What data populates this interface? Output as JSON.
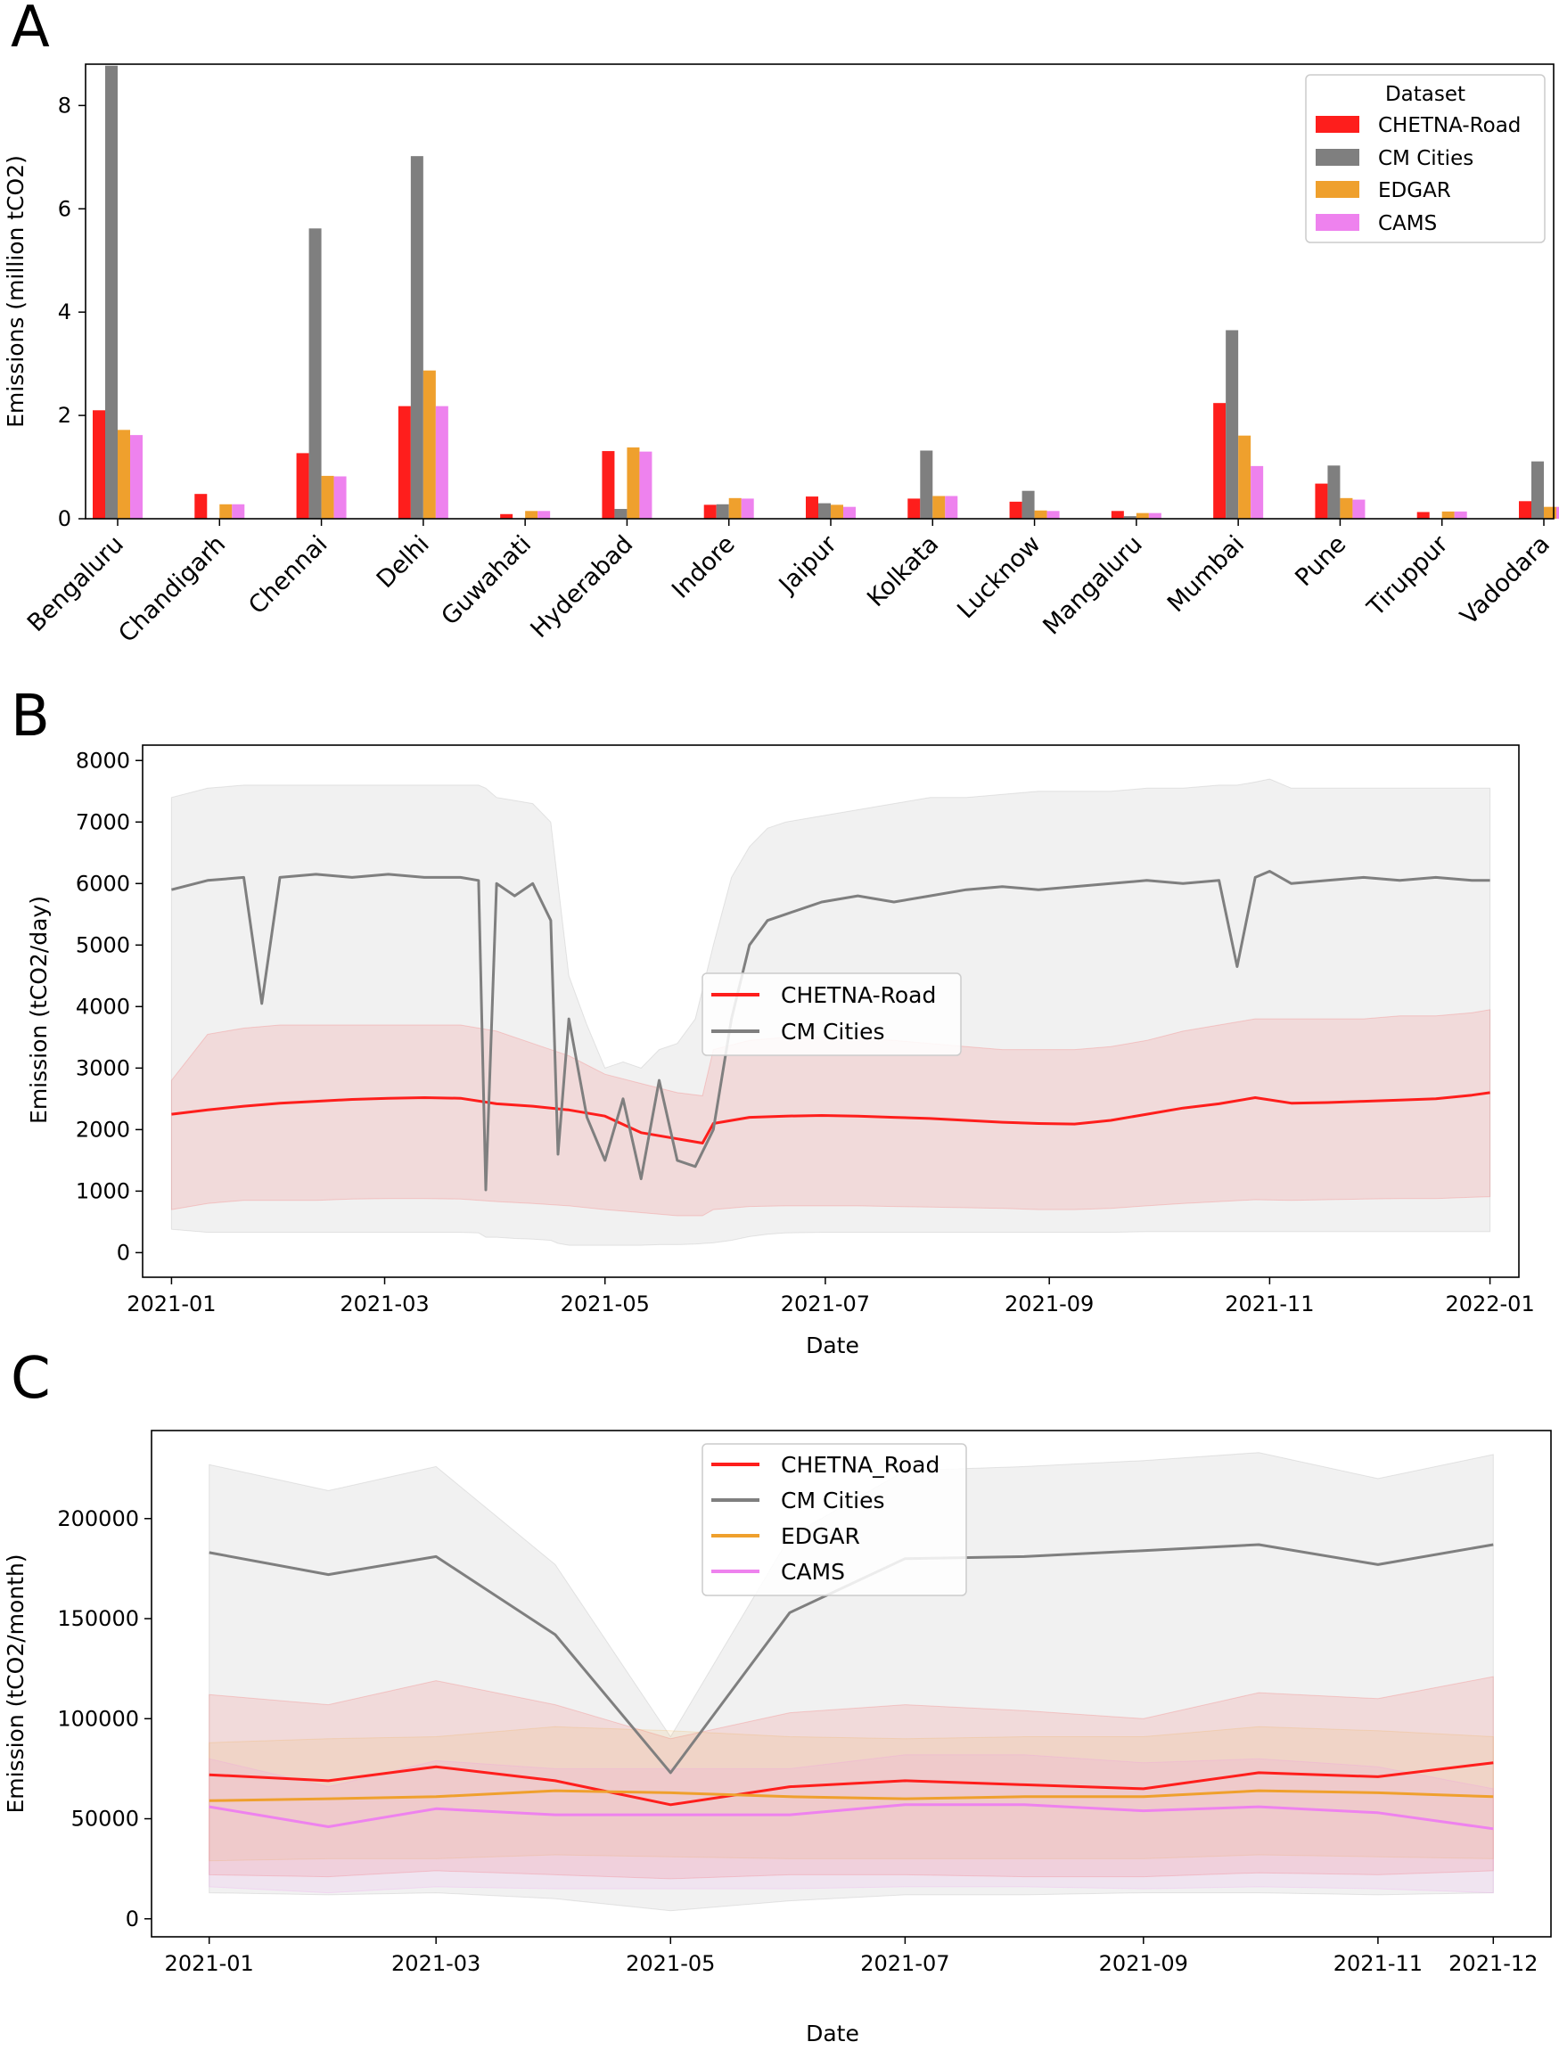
{
  "colors": {
    "chetna": "#fe1e1c",
    "cm": "#7f7f7f",
    "edgar": "#efa02d",
    "cams": "#ee82ee"
  },
  "chart_data": [
    {
      "panel": "A",
      "type": "bar",
      "title": "",
      "xlabel": "",
      "ylabel": "Emissions (million tCO2)",
      "ylim": [
        0,
        8.8
      ],
      "yticks": [
        0,
        2,
        4,
        6,
        8
      ],
      "legend": {
        "title": "Dataset",
        "placement": "top-right"
      },
      "categories": [
        "Bengaluru",
        "Chandigarh",
        "Chennai",
        "Delhi",
        "Guwahati",
        "Hyderabad",
        "Indore",
        "Jaipur",
        "Kolkata",
        "Lucknow",
        "Mangaluru",
        "Mumbai",
        "Pune",
        "Tiruppur",
        "Vadodara"
      ],
      "series": [
        {
          "name": "CHETNA-Road",
          "values": [
            2.1,
            0.48,
            1.27,
            2.18,
            0.09,
            1.31,
            0.27,
            0.43,
            0.39,
            0.33,
            0.15,
            2.24,
            0.68,
            0.13,
            0.34
          ]
        },
        {
          "name": "CM Cities",
          "values": [
            8.77,
            0.0,
            5.62,
            7.02,
            0.0,
            0.19,
            0.28,
            0.3,
            1.32,
            0.54,
            0.05,
            3.65,
            1.03,
            0.0,
            1.11
          ]
        },
        {
          "name": "EDGAR",
          "values": [
            1.72,
            0.28,
            0.83,
            2.87,
            0.15,
            1.38,
            0.4,
            0.27,
            0.44,
            0.16,
            0.11,
            1.61,
            0.4,
            0.14,
            0.23
          ]
        },
        {
          "name": "CAMS",
          "values": [
            1.62,
            0.28,
            0.82,
            2.18,
            0.15,
            1.3,
            0.39,
            0.23,
            0.44,
            0.15,
            0.11,
            1.02,
            0.37,
            0.14,
            0.23
          ]
        }
      ]
    },
    {
      "panel": "B",
      "type": "line",
      "title": "",
      "xlabel": "Date",
      "ylabel": "Emission (tCO2/day)",
      "ylim": [
        -400,
        8250
      ],
      "yticks": [
        0,
        1000,
        2000,
        3000,
        4000,
        5000,
        6000,
        7000,
        8000
      ],
      "xticks": [
        "2021-01",
        "2021-03",
        "2021-05",
        "2021-07",
        "2021-09",
        "2021-11",
        "2022-01"
      ],
      "xtick_days": [
        0,
        59,
        120,
        181,
        243,
        304,
        365
      ],
      "xlim_days": [
        -8,
        373
      ],
      "legend": {
        "placement": "center"
      },
      "series": [
        {
          "name": "CHETNA-Road",
          "x_days": [
            0,
            10,
            20,
            30,
            40,
            50,
            60,
            70,
            80,
            90,
            100,
            110,
            120,
            130,
            140,
            147,
            150,
            160,
            170,
            180,
            190,
            200,
            210,
            220,
            230,
            240,
            250,
            260,
            270,
            280,
            290,
            300,
            310,
            320,
            330,
            340,
            350,
            360,
            365
          ],
          "values": [
            2250,
            2320,
            2380,
            2430,
            2460,
            2490,
            2510,
            2520,
            2510,
            2420,
            2380,
            2320,
            2220,
            1950,
            1850,
            1780,
            2100,
            2200,
            2220,
            2230,
            2220,
            2200,
            2180,
            2150,
            2120,
            2100,
            2090,
            2150,
            2250,
            2350,
            2420,
            2520,
            2430,
            2440,
            2460,
            2480,
            2500,
            2560,
            2600
          ],
          "band_upper": [
            2800,
            3550,
            3650,
            3700,
            3700,
            3700,
            3700,
            3700,
            3700,
            3600,
            3400,
            3200,
            2900,
            2750,
            2600,
            2550,
            3300,
            3450,
            3500,
            3500,
            3500,
            3450,
            3400,
            3350,
            3300,
            3300,
            3300,
            3350,
            3450,
            3600,
            3700,
            3800,
            3800,
            3800,
            3800,
            3850,
            3850,
            3900,
            3950
          ],
          "band_lower": [
            700,
            800,
            850,
            850,
            850,
            870,
            880,
            880,
            870,
            830,
            800,
            760,
            700,
            650,
            600,
            600,
            700,
            750,
            760,
            760,
            760,
            750,
            740,
            730,
            720,
            700,
            700,
            720,
            760,
            800,
            830,
            860,
            850,
            860,
            870,
            880,
            880,
            900,
            910
          ]
        },
        {
          "name": "CM Cities",
          "x_days": [
            0,
            10,
            20,
            25,
            30,
            40,
            50,
            60,
            70,
            80,
            85,
            87,
            90,
            95,
            100,
            105,
            107,
            110,
            115,
            120,
            125,
            130,
            135,
            140,
            145,
            150,
            155,
            160,
            165,
            170,
            180,
            190,
            200,
            210,
            220,
            230,
            240,
            250,
            260,
            270,
            280,
            290,
            295,
            300,
            304,
            310,
            320,
            330,
            340,
            350,
            360,
            365
          ],
          "values": [
            5900,
            6050,
            6100,
            4050,
            6100,
            6150,
            6100,
            6150,
            6100,
            6100,
            6050,
            1020,
            6000,
            5800,
            6000,
            5400,
            1600,
            3800,
            2200,
            1500,
            2500,
            1200,
            2800,
            1500,
            1400,
            2000,
            3800,
            5000,
            5400,
            5500,
            5700,
            5800,
            5700,
            5800,
            5900,
            5950,
            5900,
            5950,
            6000,
            6050,
            6000,
            6050,
            4650,
            6100,
            6200,
            6000,
            6050,
            6100,
            6050,
            6100,
            6050,
            6050
          ],
          "band_upper": [
            7400,
            7550,
            7600,
            7600,
            7600,
            7600,
            7600,
            7600,
            7600,
            7600,
            7600,
            7550,
            7400,
            7350,
            7300,
            7000,
            6000,
            4500,
            3700,
            3000,
            3100,
            3000,
            3300,
            3400,
            3800,
            5000,
            6100,
            6600,
            6900,
            7000,
            7100,
            7200,
            7300,
            7400,
            7400,
            7450,
            7500,
            7500,
            7500,
            7550,
            7550,
            7600,
            7600,
            7650,
            7700,
            7550,
            7550,
            7550,
            7550,
            7550,
            7550,
            7550
          ],
          "band_lower": [
            380,
            330,
            330,
            330,
            330,
            330,
            330,
            330,
            330,
            330,
            320,
            250,
            250,
            230,
            220,
            200,
            150,
            120,
            120,
            120,
            120,
            120,
            130,
            130,
            140,
            160,
            200,
            260,
            300,
            320,
            330,
            330,
            330,
            330,
            330,
            330,
            330,
            330,
            330,
            340,
            340,
            340,
            340,
            340,
            340,
            340,
            340,
            340,
            340,
            340,
            340,
            340
          ]
        }
      ]
    },
    {
      "panel": "C",
      "type": "line",
      "title": "",
      "xlabel": "Date",
      "ylabel": "Emission (tCO2/month)",
      "ylim": [
        -9000,
        244000
      ],
      "yticks": [
        0,
        50000,
        100000,
        150000,
        200000
      ],
      "xticks": [
        "2021-01",
        "2021-03",
        "2021-05",
        "2021-07",
        "2021-09",
        "2021-11",
        "2021-12"
      ],
      "xtick_days": [
        0,
        59,
        120,
        181,
        243,
        304,
        334
      ],
      "xlim_days": [
        -15,
        349
      ],
      "legend": {
        "placement": "top-center"
      },
      "x_days": [
        0,
        31,
        59,
        90,
        120,
        151,
        181,
        212,
        243,
        273,
        304,
        334
      ],
      "series": [
        {
          "name": "CHETNA_Road",
          "values": [
            72000,
            69000,
            76000,
            69000,
            57000,
            66000,
            69000,
            67000,
            65000,
            73000,
            71000,
            78000
          ],
          "band_upper": [
            112000,
            107000,
            119000,
            107000,
            90000,
            103000,
            107000,
            104000,
            100000,
            113000,
            110000,
            121000
          ],
          "band_lower": [
            22000,
            21000,
            24000,
            22000,
            20000,
            22000,
            22000,
            21000,
            21000,
            23000,
            22000,
            24000
          ]
        },
        {
          "name": "CM Cities",
          "values": [
            183000,
            172000,
            181000,
            142000,
            73000,
            153000,
            180000,
            181000,
            184000,
            187000,
            177000,
            187000
          ],
          "band_upper": [
            227000,
            214000,
            226000,
            177000,
            91000,
            191000,
            224000,
            226000,
            229000,
            233000,
            220000,
            232000
          ],
          "band_lower": [
            13000,
            12000,
            13000,
            10000,
            4000,
            9000,
            12000,
            12000,
            13000,
            13000,
            12000,
            13000
          ]
        },
        {
          "name": "EDGAR",
          "values": [
            59000,
            60000,
            61000,
            64000,
            63000,
            61000,
            60000,
            61000,
            61000,
            64000,
            63000,
            61000
          ],
          "band_upper": [
            88000,
            90000,
            91000,
            96000,
            94000,
            91000,
            90000,
            91000,
            91000,
            96000,
            94000,
            91000
          ],
          "band_lower": [
            29000,
            30000,
            30000,
            32000,
            31000,
            30000,
            30000,
            30000,
            30000,
            32000,
            31000,
            30000
          ]
        },
        {
          "name": "CAMS",
          "values": [
            56000,
            46000,
            55000,
            52000,
            52000,
            52000,
            57000,
            57000,
            54000,
            56000,
            53000,
            45000
          ],
          "band_upper": [
            80000,
            66000,
            79000,
            75000,
            75000,
            75000,
            82000,
            82000,
            78000,
            80000,
            76000,
            65000
          ],
          "band_lower": [
            16000,
            13000,
            16000,
            15000,
            15000,
            15000,
            16000,
            16000,
            15000,
            16000,
            15000,
            13000
          ]
        }
      ]
    }
  ],
  "panels": {
    "a": "A",
    "b": "B",
    "c": "C"
  },
  "axes_labels": {
    "a_ylabel": "Emissions (million tCO2)",
    "b_ylabel": "Emission (tCO2/day)",
    "b_xlabel": "Date",
    "c_ylabel": "Emission (tCO2/month)",
    "c_xlabel": "Date"
  },
  "legend_a": {
    "title": "Dataset",
    "items": [
      "CHETNA-Road",
      "CM Cities",
      "EDGAR",
      "CAMS"
    ]
  },
  "legend_b": {
    "items": [
      "CHETNA-Road",
      "CM Cities"
    ]
  },
  "legend_c": {
    "items": [
      "CHETNA_Road",
      "CM Cities",
      "EDGAR",
      "CAMS"
    ]
  }
}
